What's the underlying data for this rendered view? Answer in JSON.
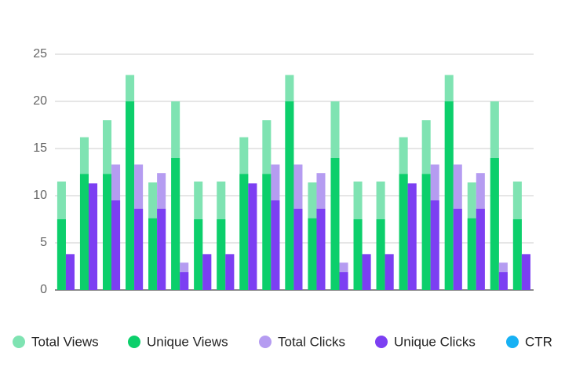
{
  "chart_data": {
    "type": "bar",
    "categories": [
      null,
      null,
      null,
      null,
      null,
      null,
      null,
      null,
      null,
      null,
      null,
      null,
      null,
      null,
      null,
      null,
      null,
      null,
      null,
      null,
      null
    ],
    "series": [
      {
        "name": "Total Views",
        "color": "#7fe3b2",
        "values": [
          11.5,
          16.2,
          18,
          22.8,
          11.4,
          20,
          11.5,
          11.5,
          16.2,
          18,
          22.8,
          11.4,
          20,
          11.5,
          11.5,
          16.2,
          18,
          22.8,
          11.4,
          20,
          11.5
        ]
      },
      {
        "name": "Unique Views",
        "color": "#0ccf6b",
        "values": [
          7.5,
          12.3,
          12.3,
          20,
          7.6,
          14,
          7.5,
          7.5,
          12.3,
          12.3,
          20,
          7.6,
          14,
          7.5,
          7.5,
          12.3,
          12.3,
          20,
          7.6,
          14,
          7.5
        ]
      },
      {
        "name": "Total Clicks",
        "color": "#b59cf1",
        "values": [
          3.8,
          11.3,
          13.3,
          13.3,
          12.4,
          2.9,
          3.8,
          3.8,
          11.3,
          13.3,
          13.3,
          12.4,
          2.9,
          3.8,
          3.8,
          11.3,
          13.3,
          13.3,
          12.4,
          2.9,
          3.8
        ]
      },
      {
        "name": "Unique Clicks",
        "color": "#7c3ff2",
        "values": [
          3.8,
          11.3,
          9.5,
          8.6,
          8.6,
          1.9,
          3.8,
          3.8,
          11.3,
          9.5,
          8.6,
          8.6,
          1.9,
          3.8,
          3.8,
          11.3,
          9.5,
          8.6,
          8.6,
          1.9,
          3.8
        ]
      },
      {
        "name": "CTR",
        "color": "#17b1f4",
        "values": [
          null,
          null,
          null,
          null,
          null,
          null,
          null,
          null,
          null,
          null,
          null,
          null,
          null,
          null,
          null,
          null,
          null,
          null,
          null,
          null,
          null
        ]
      }
    ],
    "ylim": [
      0,
      25
    ],
    "yticks": [
      0,
      5,
      10,
      15,
      20,
      25
    ],
    "grid": true
  }
}
